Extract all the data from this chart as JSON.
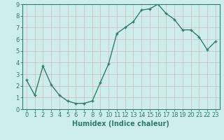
{
  "x": [
    0,
    1,
    2,
    3,
    4,
    5,
    6,
    7,
    8,
    9,
    10,
    11,
    12,
    13,
    14,
    15,
    16,
    17,
    18,
    19,
    20,
    21,
    22,
    23
  ],
  "y": [
    2.5,
    1.2,
    3.7,
    2.1,
    1.2,
    0.7,
    0.5,
    0.5,
    0.7,
    2.3,
    3.9,
    6.5,
    7.0,
    7.5,
    8.5,
    8.6,
    9.0,
    8.2,
    7.7,
    6.8,
    6.8,
    6.2,
    5.1,
    5.8
  ],
  "line_color": "#2e7d6e",
  "marker": "+",
  "marker_size": 3,
  "bg_color": "#ceeeed",
  "grid_color_major": "#b8d8d6",
  "grid_color_minor": "#d6ecea",
  "xlabel": "Humidex (Indice chaleur)",
  "xlabel_fontsize": 7,
  "tick_fontsize": 6,
  "ylim": [
    0,
    9
  ],
  "xlim": [
    -0.5,
    23.5
  ],
  "xticks": [
    0,
    1,
    2,
    3,
    4,
    5,
    6,
    7,
    8,
    9,
    10,
    11,
    12,
    13,
    14,
    15,
    16,
    17,
    18,
    19,
    20,
    21,
    22,
    23
  ],
  "yticks": [
    0,
    1,
    2,
    3,
    4,
    5,
    6,
    7,
    8,
    9
  ],
  "line_width": 1.0
}
